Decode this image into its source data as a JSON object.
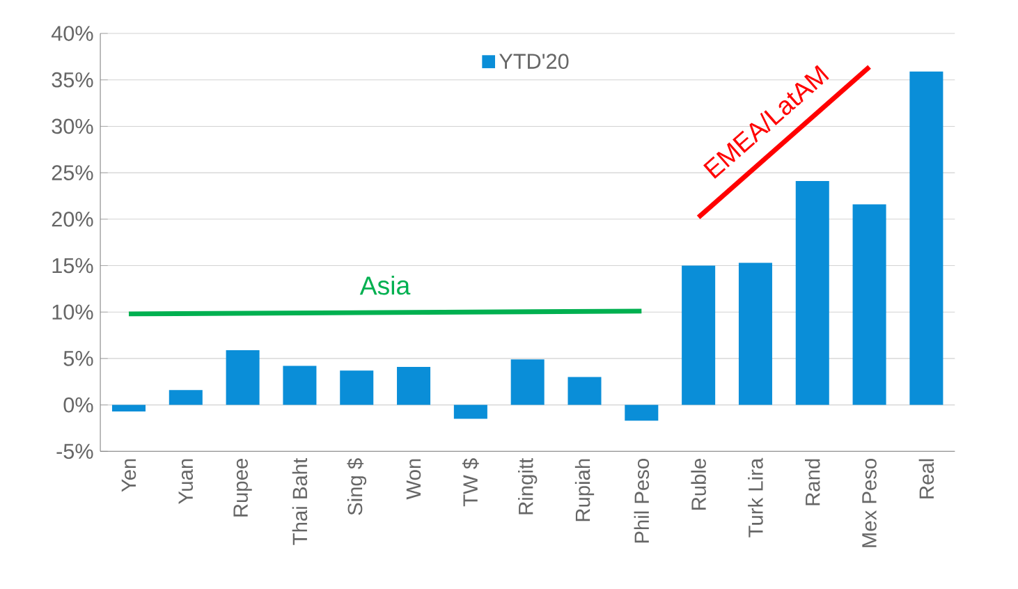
{
  "chart_data": {
    "type": "bar",
    "categories": [
      "Yen",
      "Yuan",
      "Rupee",
      "Thai Baht",
      "Sing $",
      "Won",
      "TW $",
      "Ringitt",
      "Rupiah",
      "Phil Peso",
      "Ruble",
      "Turk Lira",
      "Rand",
      "Mex Peso",
      "Real"
    ],
    "series": [
      {
        "name": "YTD'20",
        "color": "#0a8ed8",
        "values": [
          -0.7,
          1.6,
          5.9,
          4.2,
          3.7,
          4.1,
          -1.5,
          4.9,
          3.0,
          -1.7,
          15.0,
          15.3,
          24.1,
          21.6,
          35.9
        ]
      },
      {
        "type": "line",
        "color": "#00b050",
        "x": [
          "Yen",
          "Phil Peso"
        ],
        "values": [
          9.8,
          10.1
        ]
      },
      {
        "type": "line",
        "color": "#ff0000",
        "x": [
          "Ruble",
          "Mex Peso"
        ],
        "values": [
          20.2,
          36.4
        ]
      }
    ],
    "ylim": [
      -5,
      40
    ],
    "yticks": [
      {
        "value": -5,
        "label": "-5%"
      },
      {
        "value": 0,
        "label": "0%"
      },
      {
        "value": 5,
        "label": "5%"
      },
      {
        "value": 10,
        "label": "10%"
      },
      {
        "value": 15,
        "label": "15%"
      },
      {
        "value": 20,
        "label": "20%"
      },
      {
        "value": 25,
        "label": "25%"
      },
      {
        "value": 30,
        "label": "30%"
      },
      {
        "value": 35,
        "label": "35%"
      },
      {
        "value": 40,
        "label": "40%"
      }
    ],
    "annotations": [
      "Asia",
      "EMEA/LatAM"
    ],
    "grid": "y",
    "legend": "top"
  }
}
